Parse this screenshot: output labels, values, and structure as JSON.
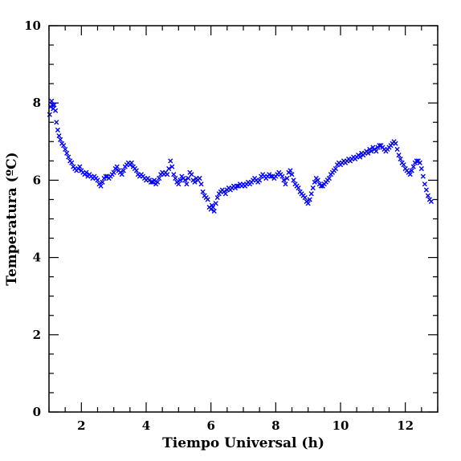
{
  "chart_data": {
    "type": "scatter",
    "title": "",
    "xlabel": "Tiempo Universal (h)",
    "ylabel": "Temperatura (ºC)",
    "xlim": [
      1.0,
      13.0
    ],
    "ylim": [
      0,
      10
    ],
    "x_ticks": [
      2,
      4,
      6,
      8,
      10,
      12
    ],
    "y_ticks": [
      0,
      2,
      4,
      6,
      8,
      10
    ],
    "x_minor_step": 0.5,
    "y_minor_step": 0.5,
    "marker": "x",
    "marker_color": "#0000ff",
    "grid": false,
    "legend": "none",
    "series": [
      {
        "points": [
          [
            1.02,
            7.7
          ],
          [
            1.05,
            7.9
          ],
          [
            1.08,
            8.05
          ],
          [
            1.1,
            7.95
          ],
          [
            1.13,
            7.85
          ],
          [
            1.16,
            7.95
          ],
          [
            1.2,
            7.8
          ],
          [
            1.23,
            7.5
          ],
          [
            1.27,
            7.3
          ],
          [
            1.31,
            7.15
          ],
          [
            1.35,
            7.05
          ],
          [
            1.4,
            6.95
          ],
          [
            1.45,
            6.9
          ],
          [
            1.5,
            6.8
          ],
          [
            1.55,
            6.7
          ],
          [
            1.6,
            6.6
          ],
          [
            1.65,
            6.5
          ],
          [
            1.7,
            6.45
          ],
          [
            1.75,
            6.35
          ],
          [
            1.8,
            6.3
          ],
          [
            1.85,
            6.25
          ],
          [
            1.9,
            6.3
          ],
          [
            1.95,
            6.35
          ],
          [
            2.0,
            6.25
          ],
          [
            2.05,
            6.2
          ],
          [
            2.1,
            6.15
          ],
          [
            2.15,
            6.2
          ],
          [
            2.2,
            6.1
          ],
          [
            2.25,
            6.15
          ],
          [
            2.3,
            6.1
          ],
          [
            2.35,
            6.05
          ],
          [
            2.4,
            6.1
          ],
          [
            2.45,
            6.05
          ],
          [
            2.5,
            6.0
          ],
          [
            2.55,
            5.9
          ],
          [
            2.6,
            5.85
          ],
          [
            2.65,
            5.95
          ],
          [
            2.7,
            6.05
          ],
          [
            2.75,
            6.1
          ],
          [
            2.8,
            6.1
          ],
          [
            2.85,
            6.05
          ],
          [
            2.9,
            6.1
          ],
          [
            2.95,
            6.15
          ],
          [
            3.0,
            6.2
          ],
          [
            3.05,
            6.3
          ],
          [
            3.1,
            6.35
          ],
          [
            3.15,
            6.25
          ],
          [
            3.2,
            6.2
          ],
          [
            3.25,
            6.15
          ],
          [
            3.3,
            6.25
          ],
          [
            3.35,
            6.35
          ],
          [
            3.4,
            6.4
          ],
          [
            3.45,
            6.45
          ],
          [
            3.5,
            6.4
          ],
          [
            3.55,
            6.45
          ],
          [
            3.6,
            6.35
          ],
          [
            3.65,
            6.3
          ],
          [
            3.7,
            6.25
          ],
          [
            3.75,
            6.15
          ],
          [
            3.8,
            6.1
          ],
          [
            3.85,
            6.15
          ],
          [
            3.9,
            6.1
          ],
          [
            3.95,
            6.05
          ],
          [
            4.0,
            6.0
          ],
          [
            4.05,
            6.05
          ],
          [
            4.1,
            6.0
          ],
          [
            4.15,
            5.95
          ],
          [
            4.2,
            5.95
          ],
          [
            4.25,
            6.0
          ],
          [
            4.3,
            5.9
          ],
          [
            4.35,
            5.95
          ],
          [
            4.4,
            6.05
          ],
          [
            4.45,
            6.15
          ],
          [
            4.5,
            6.2
          ],
          [
            4.55,
            6.15
          ],
          [
            4.6,
            6.2
          ],
          [
            4.65,
            6.15
          ],
          [
            4.7,
            6.3
          ],
          [
            4.75,
            6.5
          ],
          [
            4.8,
            6.35
          ],
          [
            4.85,
            6.15
          ],
          [
            4.9,
            6.05
          ],
          [
            4.95,
            5.95
          ],
          [
            5.0,
            5.9
          ],
          [
            5.05,
            6.0
          ],
          [
            5.1,
            6.1
          ],
          [
            5.15,
            6.05
          ],
          [
            5.2,
            6.0
          ],
          [
            5.25,
            5.9
          ],
          [
            5.3,
            6.05
          ],
          [
            5.35,
            6.2
          ],
          [
            5.4,
            6.15
          ],
          [
            5.45,
            6.0
          ],
          [
            5.5,
            5.95
          ],
          [
            5.55,
            6.05
          ],
          [
            5.6,
            6.0
          ],
          [
            5.65,
            6.05
          ],
          [
            5.7,
            5.9
          ],
          [
            5.75,
            5.7
          ],
          [
            5.8,
            5.6
          ],
          [
            5.85,
            5.55
          ],
          [
            5.9,
            5.5
          ],
          [
            5.95,
            5.3
          ],
          [
            6.0,
            5.25
          ],
          [
            6.03,
            5.35
          ],
          [
            6.06,
            5.3
          ],
          [
            6.1,
            5.2
          ],
          [
            6.15,
            5.4
          ],
          [
            6.2,
            5.55
          ],
          [
            6.25,
            5.65
          ],
          [
            6.3,
            5.7
          ],
          [
            6.35,
            5.75
          ],
          [
            6.4,
            5.7
          ],
          [
            6.45,
            5.65
          ],
          [
            6.5,
            5.75
          ],
          [
            6.55,
            5.8
          ],
          [
            6.6,
            5.75
          ],
          [
            6.65,
            5.8
          ],
          [
            6.7,
            5.85
          ],
          [
            6.75,
            5.8
          ],
          [
            6.8,
            5.85
          ],
          [
            6.85,
            5.85
          ],
          [
            6.9,
            5.9
          ],
          [
            6.95,
            5.85
          ],
          [
            7.0,
            5.9
          ],
          [
            7.05,
            5.85
          ],
          [
            7.1,
            5.9
          ],
          [
            7.15,
            5.95
          ],
          [
            7.2,
            5.9
          ],
          [
            7.25,
            5.95
          ],
          [
            7.3,
            6.0
          ],
          [
            7.35,
            6.05
          ],
          [
            7.4,
            6.0
          ],
          [
            7.45,
            5.95
          ],
          [
            7.5,
            6.0
          ],
          [
            7.55,
            6.1
          ],
          [
            7.6,
            6.15
          ],
          [
            7.65,
            6.1
          ],
          [
            7.7,
            6.05
          ],
          [
            7.75,
            6.1
          ],
          [
            7.8,
            6.15
          ],
          [
            7.85,
            6.1
          ],
          [
            7.9,
            6.1
          ],
          [
            7.95,
            6.05
          ],
          [
            8.0,
            6.1
          ],
          [
            8.05,
            6.15
          ],
          [
            8.1,
            6.2
          ],
          [
            8.15,
            6.15
          ],
          [
            8.2,
            6.1
          ],
          [
            8.25,
            6.0
          ],
          [
            8.3,
            5.9
          ],
          [
            8.35,
            6.05
          ],
          [
            8.4,
            6.2
          ],
          [
            8.45,
            6.25
          ],
          [
            8.5,
            6.15
          ],
          [
            8.55,
            6.0
          ],
          [
            8.6,
            5.9
          ],
          [
            8.65,
            5.85
          ],
          [
            8.7,
            5.8
          ],
          [
            8.75,
            5.7
          ],
          [
            8.8,
            5.65
          ],
          [
            8.85,
            5.6
          ],
          [
            8.9,
            5.55
          ],
          [
            8.95,
            5.45
          ],
          [
            9.0,
            5.4
          ],
          [
            9.05,
            5.5
          ],
          [
            9.1,
            5.65
          ],
          [
            9.15,
            5.8
          ],
          [
            9.2,
            5.95
          ],
          [
            9.25,
            6.05
          ],
          [
            9.3,
            6.0
          ],
          [
            9.35,
            5.9
          ],
          [
            9.4,
            5.85
          ],
          [
            9.45,
            5.85
          ],
          [
            9.5,
            5.9
          ],
          [
            9.55,
            5.95
          ],
          [
            9.6,
            6.0
          ],
          [
            9.65,
            6.05
          ],
          [
            9.7,
            6.15
          ],
          [
            9.75,
            6.2
          ],
          [
            9.8,
            6.25
          ],
          [
            9.85,
            6.3
          ],
          [
            9.9,
            6.4
          ],
          [
            9.95,
            6.45
          ],
          [
            10.0,
            6.4
          ],
          [
            10.05,
            6.45
          ],
          [
            10.1,
            6.5
          ],
          [
            10.15,
            6.45
          ],
          [
            10.2,
            6.5
          ],
          [
            10.25,
            6.55
          ],
          [
            10.3,
            6.5
          ],
          [
            10.35,
            6.55
          ],
          [
            10.4,
            6.6
          ],
          [
            10.45,
            6.55
          ],
          [
            10.5,
            6.6
          ],
          [
            10.55,
            6.65
          ],
          [
            10.6,
            6.6
          ],
          [
            10.65,
            6.7
          ],
          [
            10.7,
            6.65
          ],
          [
            10.75,
            6.7
          ],
          [
            10.8,
            6.75
          ],
          [
            10.85,
            6.7
          ],
          [
            10.9,
            6.8
          ],
          [
            10.95,
            6.75
          ],
          [
            11.0,
            6.85
          ],
          [
            11.05,
            6.8
          ],
          [
            11.1,
            6.75
          ],
          [
            11.15,
            6.85
          ],
          [
            11.2,
            6.9
          ],
          [
            11.25,
            6.9
          ],
          [
            11.3,
            6.85
          ],
          [
            11.35,
            6.8
          ],
          [
            11.4,
            6.75
          ],
          [
            11.45,
            6.8
          ],
          [
            11.5,
            6.85
          ],
          [
            11.55,
            6.9
          ],
          [
            11.6,
            6.95
          ],
          [
            11.65,
            7.0
          ],
          [
            11.7,
            6.95
          ],
          [
            11.75,
            6.8
          ],
          [
            11.8,
            6.65
          ],
          [
            11.85,
            6.55
          ],
          [
            11.9,
            6.45
          ],
          [
            11.95,
            6.4
          ],
          [
            12.0,
            6.3
          ],
          [
            12.05,
            6.25
          ],
          [
            12.1,
            6.2
          ],
          [
            12.15,
            6.15
          ],
          [
            12.2,
            6.25
          ],
          [
            12.25,
            6.35
          ],
          [
            12.3,
            6.45
          ],
          [
            12.35,
            6.5
          ],
          [
            12.4,
            6.5
          ],
          [
            12.45,
            6.45
          ],
          [
            12.5,
            6.3
          ],
          [
            12.55,
            6.1
          ],
          [
            12.6,
            5.9
          ],
          [
            12.65,
            5.75
          ],
          [
            12.7,
            5.6
          ],
          [
            12.75,
            5.5
          ],
          [
            12.8,
            5.45
          ]
        ]
      }
    ]
  }
}
